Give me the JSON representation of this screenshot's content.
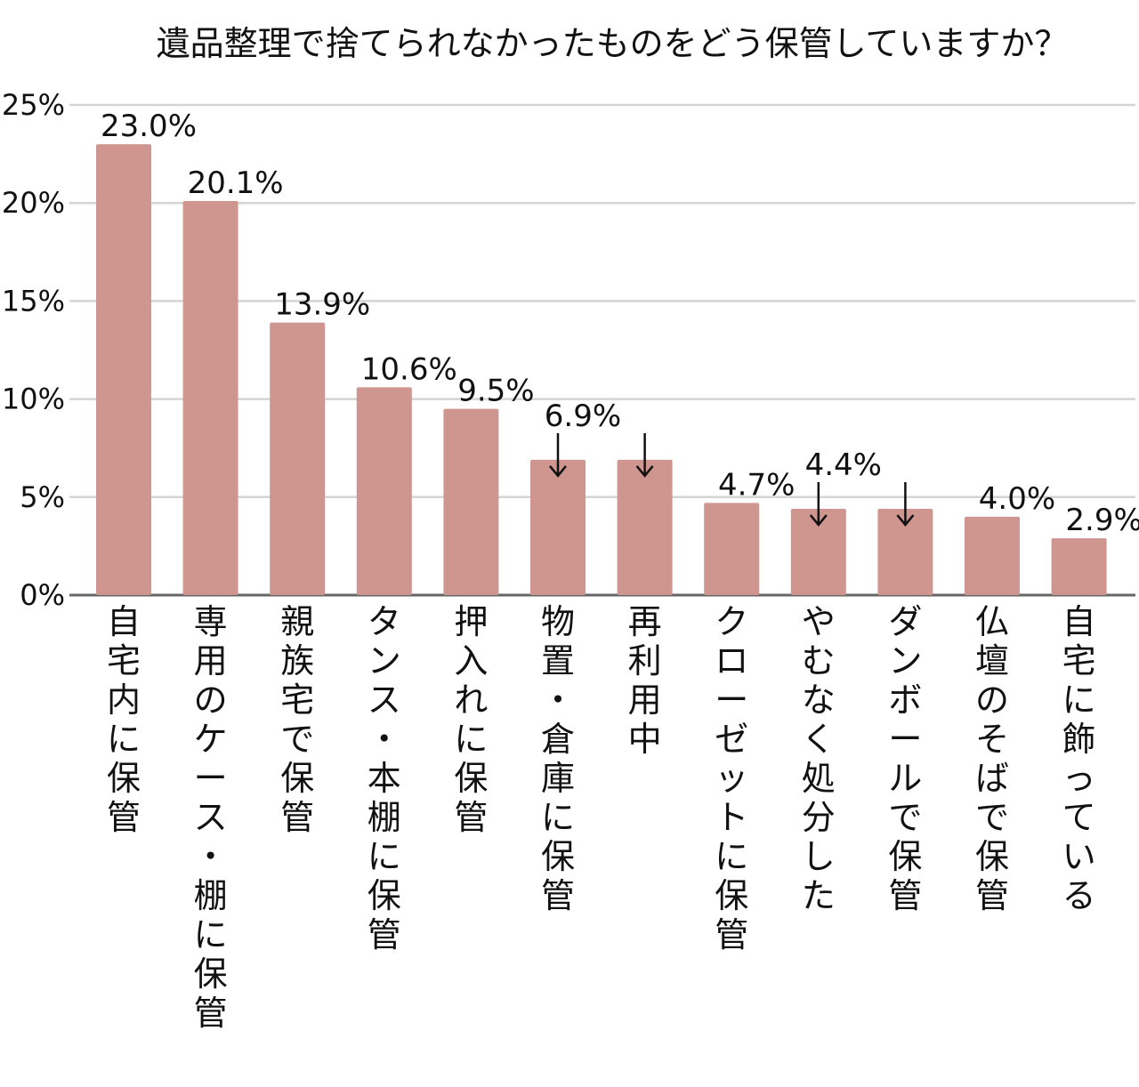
{
  "chart_data": {
    "type": "bar",
    "title": "遺品整理で捨てられなかったものをどう保管していますか？",
    "categories": [
      "自宅内に保管",
      "専用のケース・棚に保管",
      "親族宅で保管",
      "タンス・本棚に保管",
      "押入れに保管",
      "物置・倉庫に保管",
      "再利用中",
      "クローゼットに保管",
      "やむなく処分した",
      "ダンボールで保管",
      "仏壇のそばで保管",
      "自宅に飾っている"
    ],
    "values": [
      23.0,
      20.1,
      13.9,
      10.6,
      9.5,
      6.9,
      6.9,
      4.7,
      4.4,
      4.4,
      4.0,
      2.9
    ],
    "value_labels": [
      "23.0%",
      "20.1%",
      "13.9%",
      "10.6%",
      "9.5%",
      "6.9%",
      "",
      "4.7%",
      "4.4%",
      "",
      "4.0%",
      "2.9%"
    ],
    "label_arrows": [
      5,
      6,
      8,
      9
    ],
    "ylim": [
      0,
      25
    ],
    "yticks": [
      0,
      5,
      10,
      15,
      20,
      25
    ],
    "ytick_labels": [
      "0%",
      "5%",
      "10%",
      "15%",
      "20%",
      "25%"
    ],
    "xlabel": "",
    "ylabel": "",
    "grid": true,
    "colors": {
      "bar": "#cf9690",
      "grid": "#d4d4d4",
      "axis": "#666666",
      "text": "#111111"
    }
  }
}
